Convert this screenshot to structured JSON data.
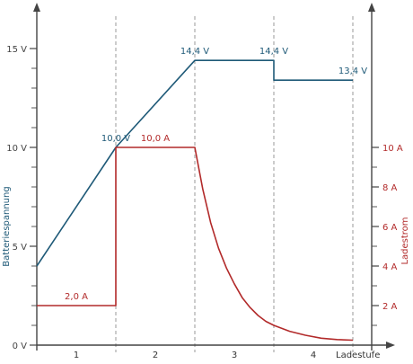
{
  "chart_data": {
    "type": "line",
    "xlabel": "Ladestufe",
    "ylabel_left": "Batteriespannung",
    "ylabel_right": "Ladestrom",
    "x_categories": [
      "1",
      "2",
      "3",
      "4"
    ],
    "x_range": [
      0,
      4.4
    ],
    "y_left": {
      "unit": "V",
      "range": [
        0,
        15
      ],
      "ticks": [
        0,
        5,
        10,
        15
      ],
      "tick_labels": [
        "0 V",
        "5 V",
        "10 V",
        "15 V"
      ],
      "minor_step": 1
    },
    "y_right": {
      "unit": "A",
      "range": [
        0,
        10
      ],
      "ticks": [
        2,
        4,
        6,
        8,
        10
      ],
      "tick_labels": [
        "2 A",
        "4 A",
        "6 A",
        "8 A",
        "10 A"
      ],
      "minor_step": 1
    },
    "stage_boundaries": [
      1,
      2,
      3,
      4
    ],
    "series": [
      {
        "name": "Batteriespannung",
        "axis": "left",
        "color": "#1f5a78",
        "points": [
          [
            0,
            4
          ],
          [
            1,
            10
          ],
          [
            2,
            14.4
          ],
          [
            3,
            14.4
          ],
          [
            3,
            13.4
          ],
          [
            4,
            13.4
          ]
        ]
      },
      {
        "name": "Ladestrom",
        "axis": "right",
        "color": "#b22a2a",
        "points": [
          [
            0,
            2
          ],
          [
            1,
            2
          ],
          [
            1,
            10
          ],
          [
            2,
            10
          ],
          [
            2.1,
            7.9
          ],
          [
            2.2,
            6.2
          ],
          [
            2.3,
            4.9
          ],
          [
            2.4,
            3.9
          ],
          [
            2.5,
            3.1
          ],
          [
            2.6,
            2.4
          ],
          [
            2.7,
            1.9
          ],
          [
            2.8,
            1.5
          ],
          [
            2.9,
            1.2
          ],
          [
            3,
            1.0
          ],
          [
            3.2,
            0.7
          ],
          [
            3.4,
            0.5
          ],
          [
            3.6,
            0.35
          ],
          [
            3.8,
            0.28
          ],
          [
            4,
            0.25
          ]
        ]
      }
    ],
    "annotations": [
      {
        "text": "10,0 V",
        "x": 1,
        "y": 10,
        "axis": "left",
        "color": "#1f5a78"
      },
      {
        "text": "14,4 V",
        "x": 2,
        "y": 14.4,
        "axis": "left",
        "color": "#1f5a78"
      },
      {
        "text": "14,4 V",
        "x": 3,
        "y": 14.4,
        "axis": "left",
        "color": "#1f5a78"
      },
      {
        "text": "13,4 V",
        "x": 4,
        "y": 13.4,
        "axis": "left",
        "color": "#1f5a78"
      },
      {
        "text": "10,0 A",
        "x": 1.5,
        "y": 10,
        "axis": "right",
        "color": "#b22a2a"
      },
      {
        "text": "2,0 A",
        "x": 0.5,
        "y": 2,
        "axis": "right",
        "color": "#b22a2a"
      }
    ],
    "colors": {
      "left_axis": "#1f5a78",
      "right_axis": "#b22a2a",
      "axis": "#444444",
      "grid": "#999999"
    }
  }
}
